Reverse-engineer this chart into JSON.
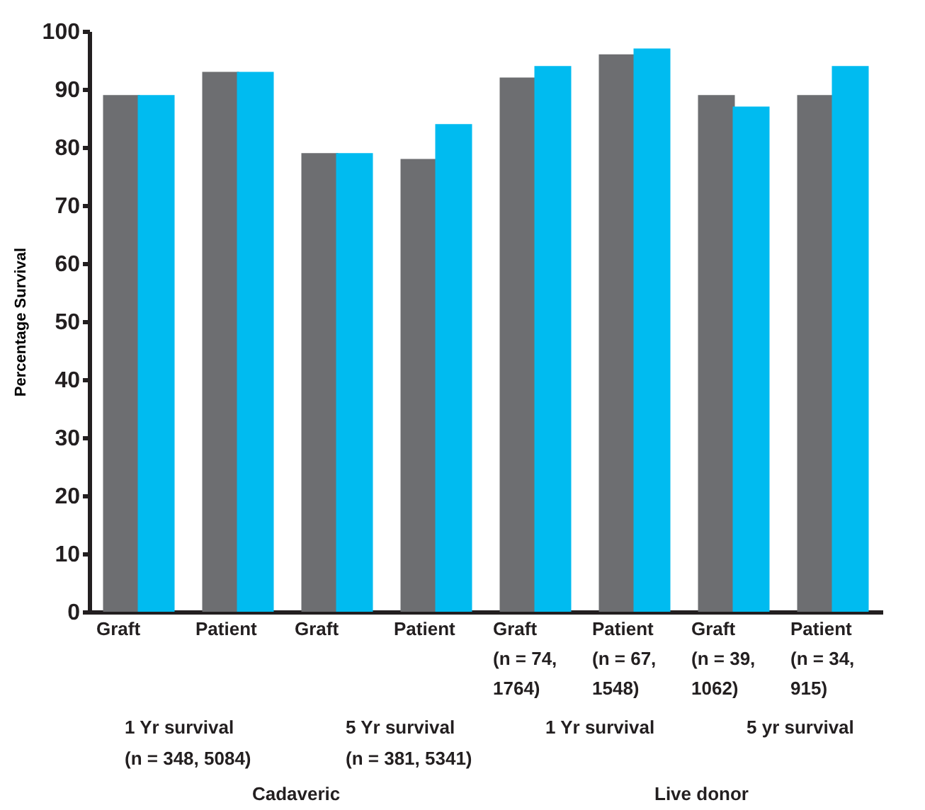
{
  "chart_data": {
    "type": "bar",
    "ylabel": "Percentage Survival",
    "categories": [
      "Graft",
      "Patient",
      "Graft",
      "Patient",
      "Graft\n(n = 74,\n1764)",
      "Patient\n(n = 67,\n1548)",
      "Graft\n(n = 39,\n1062)",
      "Patient\n(n = 34,\n915)"
    ],
    "series": [
      {
        "color": "#6d6e71",
        "values": [
          89,
          93,
          79,
          78,
          92,
          96,
          89,
          89
        ]
      },
      {
        "color": "#00bbf0",
        "values": [
          89,
          93,
          79,
          84,
          94,
          97,
          87,
          94
        ]
      }
    ],
    "ylim": [
      0,
      100
    ],
    "yticks": [
      0,
      10,
      20,
      30,
      40,
      50,
      60,
      70,
      80,
      90,
      100
    ],
    "grid": false,
    "legend": false,
    "annotations": [
      "1 Yr survival\n(n = 348, 5084)",
      "5 Yr survival\n(n = 381, 5341)",
      "1 Yr survival",
      "5 yr survival",
      "Cadaveric",
      "Live donor"
    ]
  }
}
